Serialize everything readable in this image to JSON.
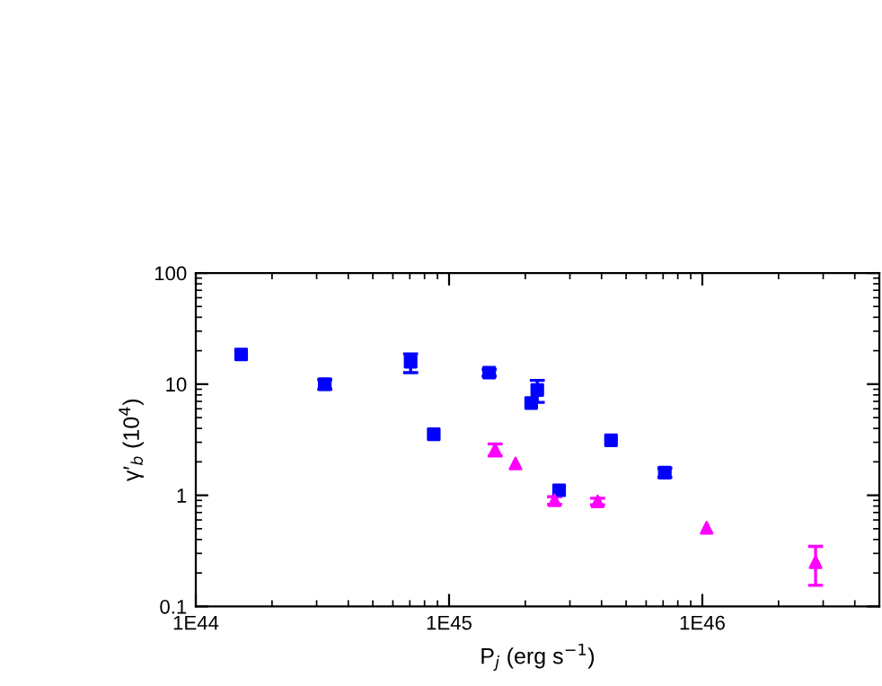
{
  "chart_data": {
    "type": "scatter",
    "xlabel": "P$_{j}$ (erg s$^{−1}$)",
    "ylabel": "γ′$_{b}$ (10$^{4}$)",
    "log": "xy",
    "grid": false,
    "xlim": [
      1e+44,
      5e+46
    ],
    "xticks": [
      {
        "value": 1e+44,
        "label": "1E44"
      },
      {
        "value": 1e+45,
        "label": "1E45"
      },
      {
        "value": 1e+46,
        "label": "1E46"
      }
    ],
    "ylim": [
      0.1,
      100
    ],
    "yticks": [
      0.1,
      1,
      10,
      100
    ],
    "series": [
      {
        "color": "#0000ff",
        "marker": "square",
        "x": [
          1.51e+44,
          3.23e+44,
          7.05e+44,
          8.7e+44,
          1.44e+45,
          2.11e+45,
          2.23e+45,
          2.72e+45,
          4.36e+45,
          7.11e+45
        ],
        "values": [
          18.5,
          10.0,
          15.9,
          3.54,
          12.7,
          6.76,
          8.87,
          1.11,
          3.13,
          1.6
        ],
        "errors": [
          null,
          [
            9.0,
            11.0
          ],
          [
            12.7,
            18.7
          ],
          null,
          [
            11.8,
            13.6
          ],
          null,
          [
            6.85,
            10.8
          ],
          null,
          null,
          [
            1.45,
            1.75
          ]
        ]
      },
      {
        "color": "#ff00ff",
        "marker": "triangle",
        "x": [
          1.52e+45,
          1.83e+45,
          2.61e+45,
          3.86e+45,
          1.04e+46,
          2.8e+46
        ],
        "values": [
          2.57,
          1.93,
          0.9,
          0.88,
          0.51,
          0.25
        ],
        "errors": [
          [
            2.26,
            2.9
          ],
          null,
          [
            0.83,
            0.97
          ],
          [
            0.82,
            0.94
          ],
          null,
          [
            0.155,
            0.347
          ]
        ]
      }
    ]
  }
}
